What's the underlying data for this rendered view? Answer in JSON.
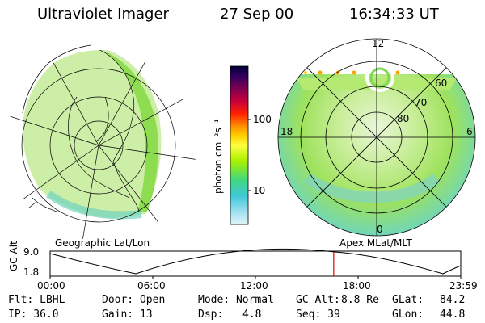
{
  "header": {
    "title": "Ultraviolet Imager",
    "date": "27 Sep 00",
    "time": "16:34:33 UT"
  },
  "left_panel": {
    "label": "Geographic Lat/Lon"
  },
  "right_panel": {
    "label": "Apex MLat/MLT",
    "mlt_labels": [
      "12",
      "18",
      "6",
      "0"
    ],
    "mlat_labels": [
      "60",
      "70",
      "80"
    ]
  },
  "colorbar": {
    "unit": "photon cm⁻²s⁻¹",
    "ticks": [
      "100",
      "10"
    ],
    "colors": [
      "#000033",
      "#300060",
      "#7a0050",
      "#c8003c",
      "#ff2000",
      "#ff9000",
      "#ffd000",
      "#ffff40",
      "#a8f000",
      "#40d880",
      "#40c8d8",
      "#a0e0f0",
      "#e0f4f8"
    ]
  },
  "timeline": {
    "ylabel": "GC Alt",
    "yticks": [
      "9.0",
      "1.8"
    ],
    "xticks": [
      "00:00",
      "06:00",
      "12:00",
      "18:00",
      "23:59"
    ],
    "current_time_fraction": 0.6906
  },
  "info": {
    "flt": "Flt: LBHL",
    "door": "Door: Open",
    "mode": "Mode: Normal",
    "gcalt_label": "GC Alt:",
    "gcalt_value": "8.8 Re",
    "glat_label": "GLat:",
    "glat_value": "84.2",
    "ip": "IP: 36.0",
    "gain": "Gain: 13",
    "dsp_label": "Dsp:",
    "dsp_value": "4.8",
    "seq": "Seq: 39",
    "glon_label": "GLon:",
    "glon_value": "44.8"
  },
  "colors": {
    "cutoff_line": "#e00000"
  }
}
